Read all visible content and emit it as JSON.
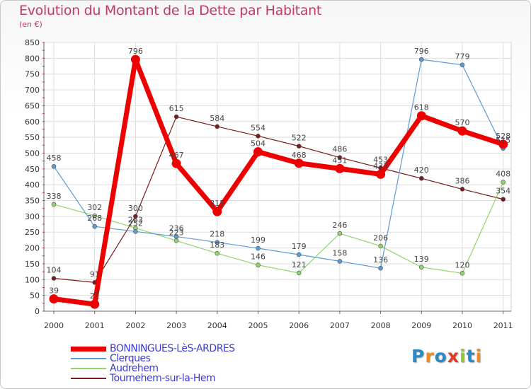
{
  "title": "Evolution du Montant de la Dette par Habitant",
  "subtitle": "(en €)",
  "brand": {
    "text": "Proxiti",
    "letter_colors": [
      "#2a8ac8",
      "#f08a20",
      "#2a8ac8",
      "#e03a2a",
      "#8cc83a",
      "#2a8ac8",
      "#f08a20"
    ]
  },
  "chart_data": {
    "type": "line",
    "x": [
      "2000",
      "2001",
      "2002",
      "2003",
      "2004",
      "2005",
      "2006",
      "2007",
      "2008",
      "2009",
      "2010",
      "2011"
    ],
    "yticks": [
      "0",
      "50",
      "100",
      "150",
      "200",
      "250",
      "300",
      "350",
      "400",
      "450",
      "500",
      "550",
      "600",
      "650",
      "700",
      "750",
      "800",
      "850"
    ],
    "ylim": [
      0,
      850
    ],
    "grid": true,
    "legend_position": "bottom-left",
    "series": [
      {
        "name": "Tournehem-sur-la-Hem",
        "color": "#7a1a1a",
        "values": [
          104,
          91,
          300,
          615,
          584,
          554,
          522,
          486,
          453,
          420,
          386,
          354
        ],
        "labels": [
          "104",
          "91",
          "300",
          "615",
          "584",
          "554",
          "522",
          "486",
          "453",
          "420",
          "386",
          "354"
        ]
      },
      {
        "name": "Audrehem",
        "color": "#8fd46a",
        "values": [
          338,
          302,
          263,
          223,
          183,
          146,
          121,
          246,
          206,
          139,
          120,
          408
        ],
        "labels": [
          "338",
          "302",
          "263",
          "223",
          "183",
          "146",
          "121",
          "246",
          "206",
          "139",
          "120",
          "408"
        ]
      },
      {
        "name": "Clerques",
        "color": "#5b9bd5",
        "values": [
          458,
          268,
          252,
          236,
          218,
          199,
          179,
          158,
          136,
          796,
          779,
          515
        ],
        "labels": [
          "458",
          "268",
          "252",
          "236",
          "218",
          "199",
          "179",
          "158",
          "136",
          "796",
          "779",
          "515"
        ]
      },
      {
        "name": "BONNINGUES-LèS-ARDRES",
        "color": "#ee0000",
        "values": [
          39,
          22,
          796,
          467,
          315,
          504,
          468,
          451,
          433,
          618,
          570,
          528
        ],
        "labels": [
          "39",
          "22",
          "796",
          "467",
          "315",
          "504",
          "468",
          "451",
          "433",
          "618",
          "570",
          "528"
        ]
      }
    ],
    "legend": [
      "BONNINGUES-LèS-ARDRES",
      "Clerques",
      "Audrehem",
      "Tournehem-sur-la-Hem"
    ]
  }
}
